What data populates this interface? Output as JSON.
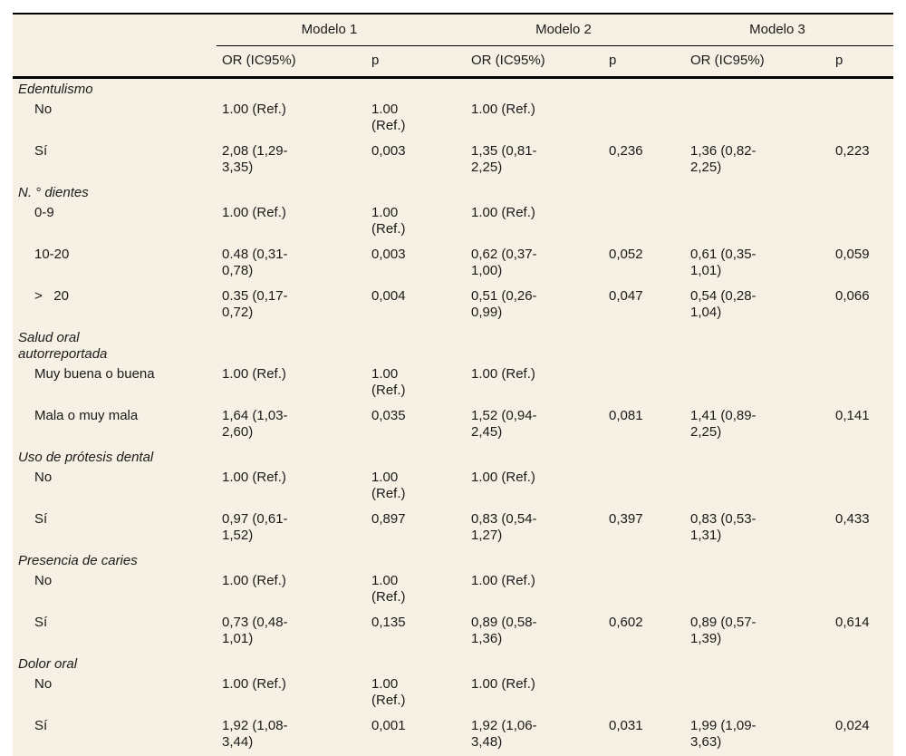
{
  "colors": {
    "page_bg": "#ffffff",
    "table_bg": "#f6f1e4",
    "rule": "#000000",
    "text": "#1a1a1a"
  },
  "table": {
    "models": [
      "Modelo 1",
      "Modelo 2",
      "Modelo 3"
    ],
    "col_headers": {
      "or": "OR (IC95%)",
      "p": "p"
    },
    "groups": [
      {
        "label": "Edentulismo",
        "rows": [
          {
            "label": "No",
            "m1_or": "1.00 (Ref.)",
            "m1_p": "1.00 (Ref.)",
            "m2_or": "1.00 (Ref.)",
            "m2_p": "",
            "m3_or": "",
            "m3_p": ""
          },
          {
            "label": "Sí",
            "m1_or": "2,08 (1,29-3,35)",
            "m1_p": "0,003",
            "m2_or": "1,35 (0,81-2,25)",
            "m2_p": "0,236",
            "m3_or": "1,36 (0,82-2,25)",
            "m3_p": "0,223"
          }
        ]
      },
      {
        "label": "N. ° dientes",
        "rows": [
          {
            "label": "0-9",
            "m1_or": "1.00 (Ref.)",
            "m1_p": "1.00 (Ref.)",
            "m2_or": "1.00 (Ref.)",
            "m2_p": "",
            "m3_or": "",
            "m3_p": ""
          },
          {
            "label": "10-20",
            "m1_or": "0.48 (0,31-0,78)",
            "m1_p": "0,003",
            "m2_or": "0,62 (0,37-1,00)",
            "m2_p": "0,052",
            "m3_or": "0,61 (0,35-1,01)",
            "m3_p": "0,059"
          },
          {
            "label": ">   20",
            "m1_or": "0.35 (0,17-0,72)",
            "m1_p": "0,004",
            "m2_or": "0,51 (0,26-0,99)",
            "m2_p": "0,047",
            "m3_or": "0,54 (0,28-1,04)",
            "m3_p": "0,066"
          }
        ]
      },
      {
        "label": "Salud oral autorreportada",
        "rows": [
          {
            "label": "Muy buena o buena",
            "m1_or": "1.00 (Ref.)",
            "m1_p": "1.00 (Ref.)",
            "m2_or": "1.00 (Ref.)",
            "m2_p": "",
            "m3_or": "",
            "m3_p": ""
          },
          {
            "label": "Mala o muy mala",
            "m1_or": "1,64 (1,03-2,60)",
            "m1_p": "0,035",
            "m2_or": "1,52 (0,94-2,45)",
            "m2_p": "0,081",
            "m3_or": "1,41 (0,89-2,25)",
            "m3_p": "0,141"
          }
        ]
      },
      {
        "label": "Uso de prótesis dental",
        "rows": [
          {
            "label": "No",
            "m1_or": "1.00 (Ref.)",
            "m1_p": "1.00 (Ref.)",
            "m2_or": "1.00 (Ref.)",
            "m2_p": "",
            "m3_or": "",
            "m3_p": ""
          },
          {
            "label": "Sí",
            "m1_or": "0,97 (0,61-1,52)",
            "m1_p": "0,897",
            "m2_or": "0,83 (0,54-1,27)",
            "m2_p": "0,397",
            "m3_or": "0,83 (0,53-1,31)",
            "m3_p": "0,433"
          }
        ]
      },
      {
        "label": "Presencia de caries",
        "rows": [
          {
            "label": "No",
            "m1_or": "1.00 (Ref.)",
            "m1_p": "1.00 (Ref.)",
            "m2_or": "1.00 (Ref.)",
            "m2_p": "",
            "m3_or": "",
            "m3_p": ""
          },
          {
            "label": "Sí",
            "m1_or": "0,73 (0,48-1,01)",
            "m1_p": "0,135",
            "m2_or": "0,89 (0,58-1,36)",
            "m2_p": "0,602",
            "m3_or": "0,89 (0,57-1,39)",
            "m3_p": "0,614"
          }
        ]
      },
      {
        "label": "Dolor oral",
        "rows": [
          {
            "label": "No",
            "m1_or": "1.00 (Ref.)",
            "m1_p": "1.00 (Ref.)",
            "m2_or": "1.00 (Ref.)",
            "m2_p": "",
            "m3_or": "",
            "m3_p": ""
          },
          {
            "label": "Sí",
            "m1_or": "1,92 (1,08-3,44)",
            "m1_p": "0,001",
            "m2_or": "1,92 (1,06-3,48)",
            "m2_p": "0,031",
            "m3_or": "1,99 (1,09-3,63)",
            "m3_p": "0,024"
          }
        ]
      }
    ]
  }
}
